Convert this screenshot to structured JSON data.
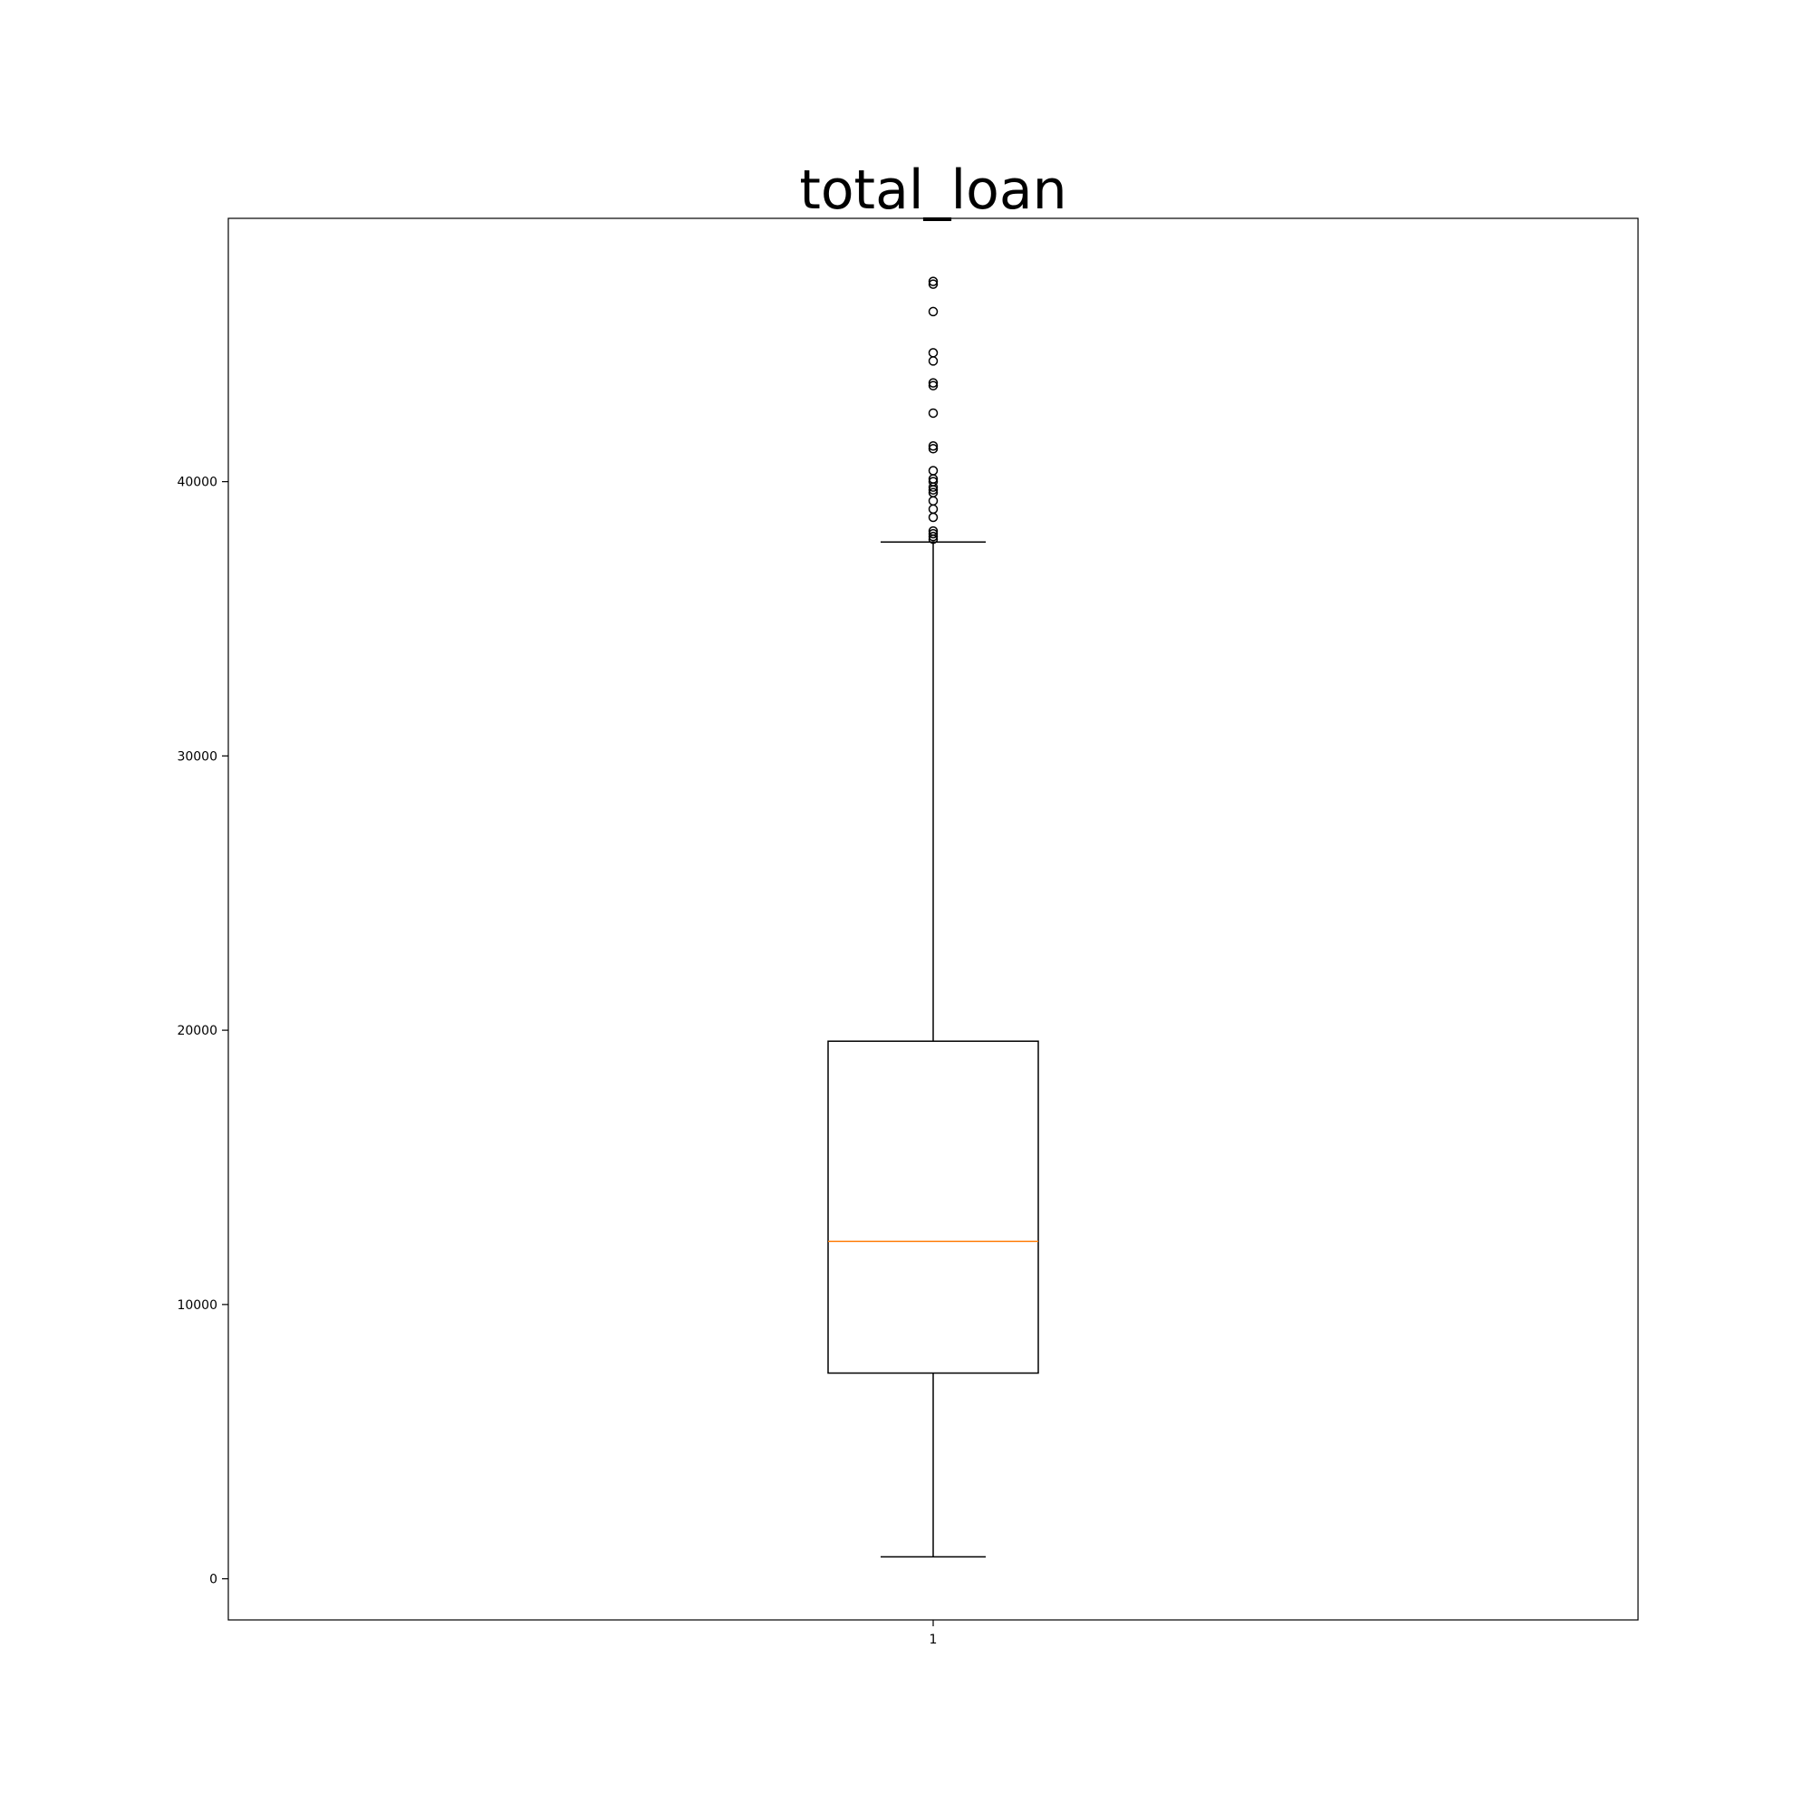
{
  "chart_data": {
    "type": "box",
    "title": "total_loan",
    "xlabel": "",
    "ylabel": "",
    "categories": [
      "1"
    ],
    "ylim": [
      -1500,
      49600
    ],
    "yticks": [
      0,
      10000,
      20000,
      30000,
      40000
    ],
    "ytick_labels": [
      "0",
      "10000",
      "20000",
      "30000",
      "40000"
    ],
    "grid": false,
    "box": {
      "whisker_low": 800,
      "q1": 7500,
      "median": 12300,
      "q3": 19600,
      "whisker_high": 37800
    },
    "outliers": [
      47300,
      47200,
      46200,
      44700,
      44400,
      43600,
      43500,
      42500,
      41300,
      41200,
      40400,
      40100,
      40000,
      39800,
      39700,
      39600,
      39300,
      39000,
      38700,
      38200,
      38100,
      38000,
      37900
    ],
    "colors": {
      "box": "#000000",
      "median": "#ff7f0e",
      "outlier": "#000000"
    }
  }
}
